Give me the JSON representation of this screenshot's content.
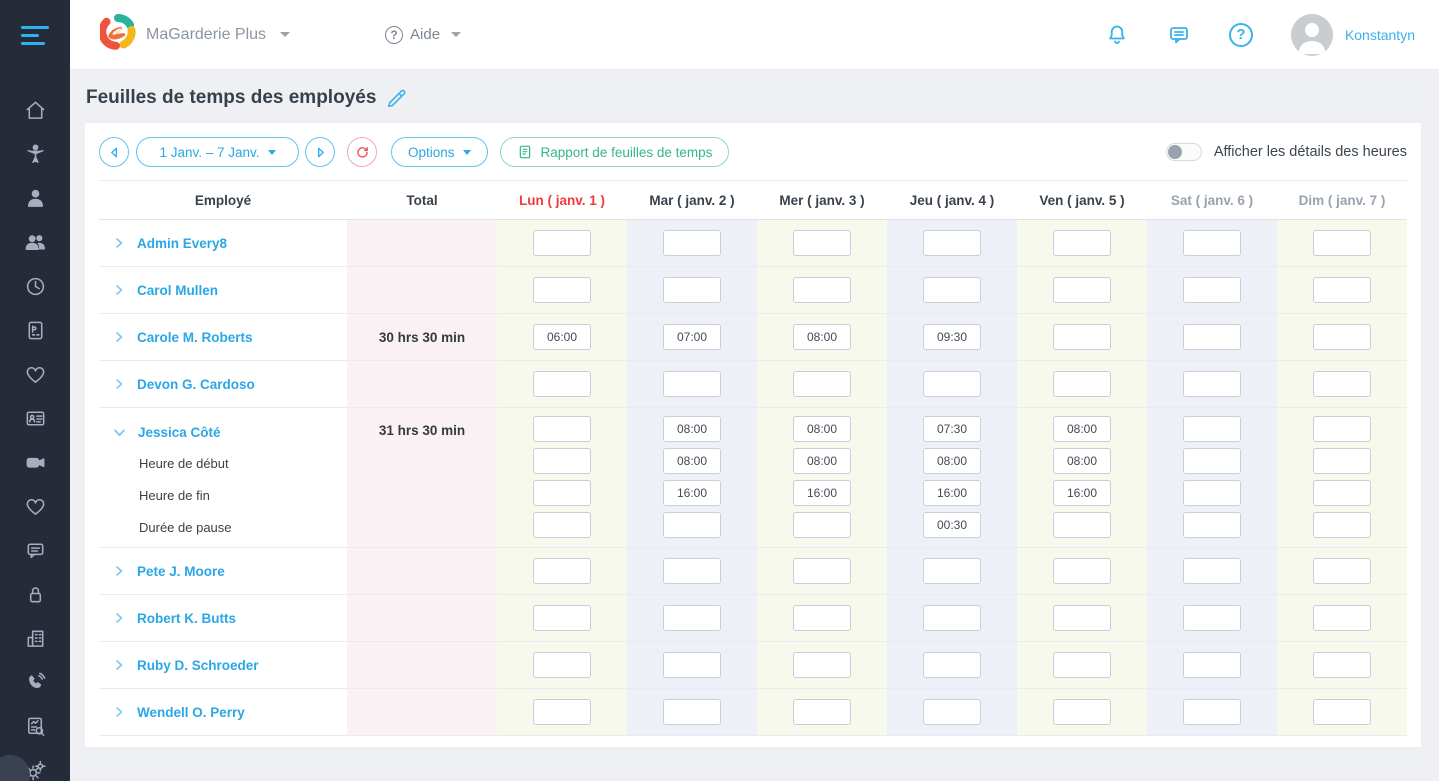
{
  "colors": {
    "accent_blue": "#2aa7e4",
    "today_red": "#f2383f",
    "report_green": "#35b785",
    "sidebar_bg": "#262b39"
  },
  "header": {
    "brand": "MaGarderie Plus",
    "help_label": "Aide",
    "user_name": "Konstantyn",
    "icons": [
      "notifications-icon",
      "messages-icon",
      "help-icon"
    ]
  },
  "sidebar": {
    "items": [
      {
        "icon": "home-icon"
      },
      {
        "icon": "child-icon"
      },
      {
        "icon": "employee-icon"
      },
      {
        "icon": "group-icon"
      },
      {
        "icon": "clock-icon"
      },
      {
        "icon": "invoice-icon"
      },
      {
        "icon": "heart-icon"
      },
      {
        "icon": "contact-card-icon"
      },
      {
        "icon": "video-camera-icon"
      },
      {
        "icon": "heart-icon"
      },
      {
        "icon": "chat-icon"
      },
      {
        "icon": "lock-icon"
      },
      {
        "icon": "building-icon"
      },
      {
        "icon": "phone-icon"
      },
      {
        "icon": "report-icon"
      },
      {
        "icon": "gears-icon"
      }
    ]
  },
  "page": {
    "title": "Feuilles de temps des employés"
  },
  "toolbar": {
    "date_range": "1 Janv. – 7 Janv.",
    "options_label": "Options",
    "report_label": "Rapport de feuilles de temps",
    "toggle_label": "Afficher les détails des heures",
    "toggle_state": "off"
  },
  "table": {
    "columns": [
      {
        "label": "Employé",
        "tone": "normal"
      },
      {
        "label": "Total",
        "tone": "normal"
      },
      {
        "label": "Lun ( janv. 1 )",
        "tone": "today"
      },
      {
        "label": "Mar ( janv. 2 )",
        "tone": "normal"
      },
      {
        "label": "Mer ( janv. 3 )",
        "tone": "normal"
      },
      {
        "label": "Jeu ( janv. 4 )",
        "tone": "normal"
      },
      {
        "label": "Ven ( janv. 5 )",
        "tone": "normal"
      },
      {
        "label": "Sat ( janv. 6 )",
        "tone": "muted"
      },
      {
        "label": "Dim ( janv. 7 )",
        "tone": "muted"
      }
    ],
    "rows": [
      {
        "name": "Admin Every8",
        "total": "",
        "days": [
          "",
          "",
          "",
          "",
          "",
          "",
          ""
        ]
      },
      {
        "name": "Carol Mullen",
        "total": "",
        "days": [
          "",
          "",
          "",
          "",
          "",
          "",
          ""
        ]
      },
      {
        "name": "Carole M. Roberts",
        "total": "30 hrs 30 min",
        "days": [
          "06:00",
          "07:00",
          "08:00",
          "09:30",
          "",
          "",
          ""
        ]
      },
      {
        "name": "Devon G. Cardoso",
        "total": "",
        "days": [
          "",
          "",
          "",
          "",
          "",
          "",
          ""
        ]
      },
      {
        "name": "Jessica Côté",
        "total": "31 hrs 30 min",
        "expanded": true,
        "days": [
          "",
          "08:00",
          "08:00",
          "07:30",
          "08:00",
          "",
          ""
        ],
        "subrows": [
          {
            "label": "Heure de début",
            "days": [
              "",
              "08:00",
              "08:00",
              "08:00",
              "08:00",
              "",
              ""
            ]
          },
          {
            "label": "Heure de fin",
            "days": [
              "",
              "16:00",
              "16:00",
              "16:00",
              "16:00",
              "",
              ""
            ]
          },
          {
            "label": "Durée de pause",
            "days": [
              "",
              "",
              "",
              "00:30",
              "",
              "",
              ""
            ]
          }
        ]
      },
      {
        "name": "Pete J. Moore",
        "total": "",
        "days": [
          "",
          "",
          "",
          "",
          "",
          "",
          ""
        ]
      },
      {
        "name": "Robert K. Butts",
        "total": "",
        "days": [
          "",
          "",
          "",
          "",
          "",
          "",
          ""
        ]
      },
      {
        "name": "Ruby D. Schroeder",
        "total": "",
        "days": [
          "",
          "",
          "",
          "",
          "",
          "",
          ""
        ]
      },
      {
        "name": "Wendell O. Perry",
        "total": "",
        "days": [
          "",
          "",
          "",
          "",
          "",
          "",
          ""
        ]
      }
    ]
  }
}
